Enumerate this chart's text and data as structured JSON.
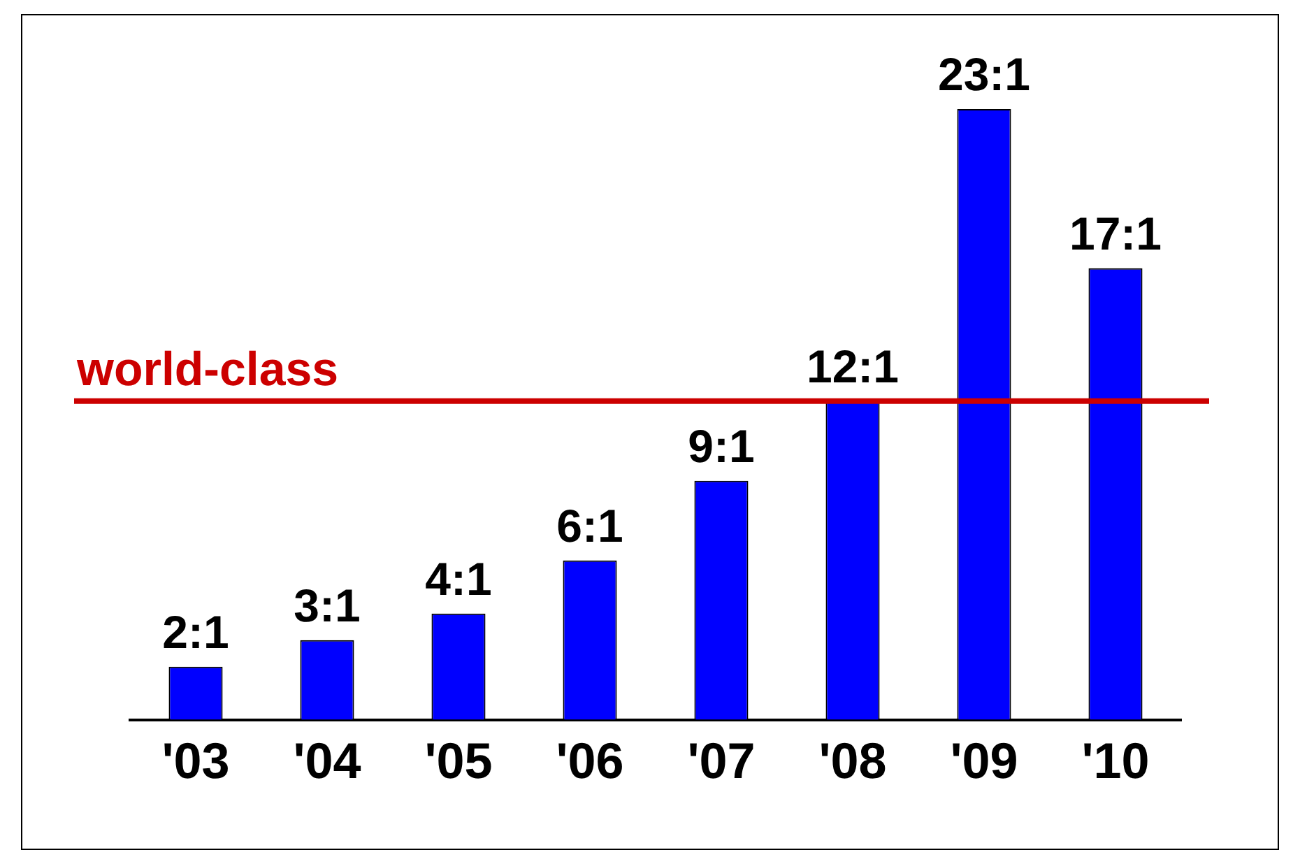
{
  "chart_data": {
    "type": "bar",
    "categories": [
      "'03",
      "'04",
      "'05",
      "'06",
      "'07",
      "'08",
      "'09",
      "'10"
    ],
    "values": [
      2,
      3,
      4,
      6,
      9,
      12,
      23,
      17
    ],
    "value_labels": [
      "2:1",
      "3:1",
      "4:1",
      "6:1",
      "9:1",
      "12:1",
      "23:1",
      "17:1"
    ],
    "color": "#0000ff",
    "tick_labels": "x",
    "grid": false,
    "legend": false,
    "ref_lines": [
      {
        "axis": "y",
        "value": 12,
        "label": "world-class",
        "color": "#cc0000"
      }
    ]
  }
}
